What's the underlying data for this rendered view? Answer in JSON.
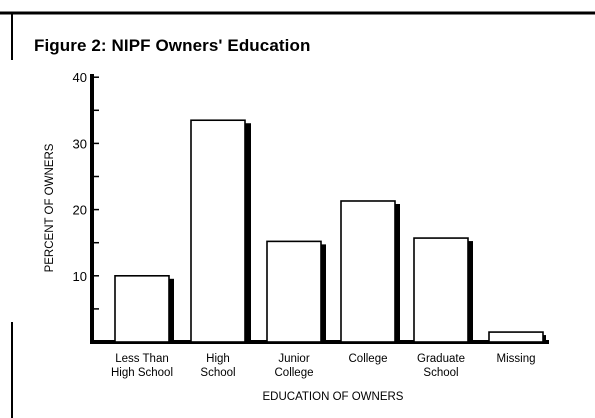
{
  "chart_data": {
    "type": "bar",
    "title": "Figure 2: NIPF Owners' Education",
    "xlabel": "EDUCATION OF OWNERS",
    "ylabel": "PERCENT OF OWNERS",
    "ylim": [
      0,
      40
    ],
    "y_ticks": [
      10,
      20,
      30,
      40
    ],
    "grid": false,
    "categories": [
      [
        "Less Than",
        "High School"
      ],
      [
        "High",
        "School"
      ],
      [
        "Junior",
        "College"
      ],
      [
        "College"
      ],
      [
        "Graduate",
        "School"
      ],
      [
        "Missing"
      ]
    ],
    "values": [
      10,
      33.5,
      15.2,
      21.3,
      15.7,
      1.5
    ],
    "colors": {
      "bar_fill": "#ffffff",
      "bar_stroke": "#000000",
      "shadow": "#000000",
      "frame": "#000000"
    }
  }
}
